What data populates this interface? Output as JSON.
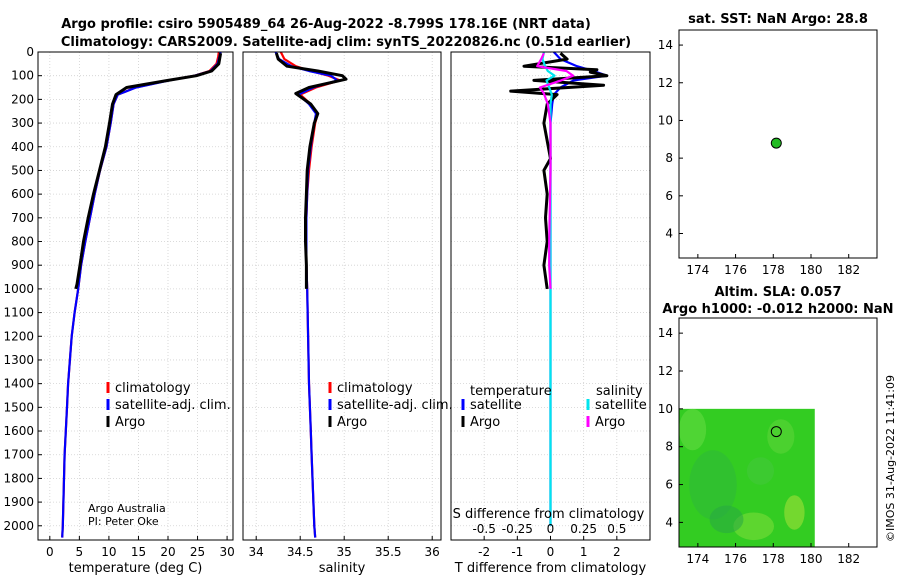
{
  "titles": {
    "line1": "Argo profile: csiro 5905489_64 26-Aug-2022 -8.799S 178.16E (NRT data)",
    "line2": "Climatology: CARS2009. Satellite-adj clim: synTS_20220826.nc (0.51d earlier)"
  },
  "colors": {
    "climatology": "#ff0000",
    "satellite": "#0000ff",
    "argo": "#000000",
    "satellite_s": "#00e5ee",
    "argo_s": "#ff00ff",
    "map_green": "#33cc22",
    "marker": "#22bb22"
  },
  "credits": {
    "line1": "Argo Australia",
    "line2": "PI: Peter Oke"
  },
  "timestamp": "©IMOS 31-Aug-2022 11:41:09",
  "chart_data": [
    {
      "id": "temperature",
      "type": "line",
      "xlabel": "temperature (deg C)",
      "ylabel": "",
      "xlim": [
        -2,
        31
      ],
      "ylim": [
        2060,
        0
      ],
      "xticks": [
        0,
        5,
        10,
        15,
        20,
        25,
        30
      ],
      "yticks": [
        0,
        100,
        200,
        300,
        400,
        500,
        600,
        700,
        800,
        900,
        1000,
        1100,
        1200,
        1300,
        1400,
        1500,
        1600,
        1700,
        1800,
        1900,
        2000
      ],
      "legend": [
        "climatology",
        "satellite-adj. clim.",
        "Argo"
      ],
      "series": [
        {
          "name": "climatology",
          "color": "#ff0000",
          "x": [
            28.6,
            28.5,
            28.2,
            27.0,
            24.5,
            20.0,
            14.5,
            11.5,
            10.8,
            10.3,
            9.6,
            8.5,
            7.6,
            6.8,
            6.0,
            5.3,
            4.8,
            4.2,
            3.7,
            3.4,
            3.1,
            2.9,
            2.7,
            2.5,
            2.4,
            2.3,
            2.2,
            2.1
          ],
          "y": [
            0,
            20,
            50,
            80,
            100,
            120,
            150,
            180,
            220,
            300,
            400,
            500,
            600,
            700,
            800,
            900,
            1000,
            1100,
            1200,
            1300,
            1400,
            1500,
            1600,
            1700,
            1800,
            1900,
            2000,
            2050
          ]
        },
        {
          "name": "satellite-adj. clim.",
          "color": "#0000ff",
          "x": [
            28.9,
            28.7,
            28.4,
            27.2,
            24.5,
            20.2,
            14.6,
            11.5,
            10.8,
            10.3,
            9.6,
            8.5,
            7.6,
            6.8,
            6.0,
            5.3,
            4.8,
            4.2,
            3.7,
            3.4,
            3.1,
            2.9,
            2.7,
            2.5,
            2.4,
            2.3,
            2.2,
            2.1
          ],
          "y": [
            0,
            20,
            50,
            80,
            100,
            120,
            150,
            180,
            220,
            300,
            400,
            500,
            600,
            700,
            800,
            900,
            1000,
            1100,
            1200,
            1300,
            1400,
            1500,
            1600,
            1700,
            1800,
            1900,
            2000,
            2050
          ]
        },
        {
          "name": "Argo",
          "color": "#000000",
          "x": [
            28.9,
            28.8,
            28.6,
            27.4,
            24.8,
            20.0,
            13.0,
            11.2,
            10.6,
            10.1,
            9.4,
            8.4,
            7.4,
            6.5,
            5.7,
            5.1,
            4.6,
            4.4
          ],
          "y": [
            5,
            20,
            50,
            80,
            100,
            120,
            150,
            180,
            220,
            300,
            400,
            500,
            600,
            700,
            800,
            900,
            980,
            1000
          ]
        }
      ],
      "annotations": [
        "Argo Australia",
        "PI: Peter Oke"
      ]
    },
    {
      "id": "salinity",
      "type": "line",
      "xlabel": "salinity",
      "xlim": [
        33.85,
        36.1
      ],
      "ylim": [
        2060,
        0
      ],
      "xticks": [
        34,
        34.5,
        35,
        35.5,
        36
      ],
      "legend": [
        "climatology",
        "satellite-adj. clim.",
        "Argo"
      ],
      "series": [
        {
          "name": "climatology",
          "color": "#ff0000",
          "x": [
            34.28,
            34.32,
            34.45,
            34.62,
            34.82,
            34.95,
            34.68,
            34.5,
            34.62,
            34.7,
            34.67,
            34.63,
            34.6,
            34.58,
            34.57,
            34.57,
            34.57,
            34.58,
            34.59,
            34.6,
            34.61,
            34.62,
            34.63,
            34.64,
            34.65,
            34.66,
            34.67
          ],
          "y": [
            0,
            30,
            60,
            80,
            100,
            120,
            150,
            180,
            220,
            260,
            300,
            400,
            500,
            600,
            700,
            800,
            900,
            1000,
            1200,
            1400,
            1500,
            1600,
            1700,
            1800,
            1900,
            2000,
            2050
          ]
        },
        {
          "name": "satellite-adj. clim.",
          "color": "#0000ff",
          "x": [
            34.22,
            34.26,
            34.4,
            34.6,
            34.85,
            34.92,
            34.65,
            34.48,
            34.6,
            34.68,
            34.66,
            34.62,
            34.59,
            34.58,
            34.57,
            34.57,
            34.57,
            34.58,
            34.59,
            34.6,
            34.61,
            34.62,
            34.63,
            34.64,
            34.65,
            34.66,
            34.67
          ],
          "y": [
            0,
            30,
            60,
            80,
            100,
            120,
            150,
            180,
            220,
            260,
            300,
            400,
            500,
            600,
            700,
            800,
            900,
            1000,
            1200,
            1400,
            1500,
            1600,
            1700,
            1800,
            1900,
            2000,
            2050
          ]
        },
        {
          "name": "Argo",
          "color": "#000000",
          "x": [
            34.23,
            34.25,
            34.35,
            34.7,
            34.98,
            35.02,
            34.6,
            34.45,
            34.62,
            34.7,
            34.66,
            34.61,
            34.58,
            34.57,
            34.56,
            34.56,
            34.57,
            34.57
          ],
          "y": [
            5,
            30,
            60,
            80,
            100,
            115,
            150,
            175,
            220,
            260,
            300,
            400,
            500,
            600,
            700,
            800,
            900,
            1000
          ]
        }
      ]
    },
    {
      "id": "difference",
      "type": "line",
      "xlabel": "T difference from climatology",
      "xlabel_top": "S difference from climatology",
      "xlim": [
        -3,
        3
      ],
      "xlim_s": [
        -0.75,
        0.75
      ],
      "ylim": [
        2060,
        0
      ],
      "xticks": [
        -2,
        -1,
        0,
        1,
        2
      ],
      "xticks_s": [
        -0.5,
        -0.25,
        0,
        0.25,
        0.5
      ],
      "xtick_labels_s": [
        "-0.5",
        "-0.25",
        "0",
        "0.25",
        "0.5"
      ],
      "legend_temperature_title": "temperature",
      "legend_salinity_title": "salinity",
      "legend_temperature": [
        "satellite",
        "Argo"
      ],
      "legend_salinity": [
        "satellite",
        "Argo"
      ],
      "series": [
        {
          "name": "T satellite",
          "color": "#0000ff",
          "axis": "T",
          "x": [
            0.1,
            0.3,
            0.8,
            1.3,
            1.7,
            0.7,
            0.3,
            0.1,
            0.05,
            0.0,
            0.0,
            0.0,
            0.0,
            0.0,
            0.0
          ],
          "y": [
            0,
            30,
            60,
            80,
            100,
            120,
            150,
            180,
            220,
            300,
            500,
            800,
            1000,
            1500,
            2000
          ]
        },
        {
          "name": "T Argo",
          "color": "#000000",
          "axis": "T",
          "x": [
            0.3,
            0.5,
            -0.8,
            1.4,
            1.2,
            1.7,
            -0.5,
            1.6,
            -1.2,
            0.2,
            -0.1,
            -0.2,
            0.0,
            -0.2,
            -0.1,
            -0.15,
            -0.1,
            -0.2,
            -0.1
          ],
          "y": [
            5,
            30,
            60,
            75,
            85,
            100,
            120,
            140,
            165,
            180,
            220,
            300,
            450,
            500,
            600,
            700,
            800,
            900,
            1000
          ]
        },
        {
          "name": "S satellite",
          "color": "#00e5ee",
          "axis": "S",
          "x": [
            -0.05,
            -0.06,
            -0.04,
            -0.02,
            0.03,
            -0.03,
            -0.01,
            0.01,
            0.0,
            0.0,
            0.0,
            0.0,
            0.0,
            0.0
          ],
          "y": [
            0,
            30,
            60,
            80,
            100,
            120,
            150,
            180,
            220,
            300,
            500,
            1000,
            1500,
            2000
          ]
        },
        {
          "name": "S Argo",
          "color": "#ff00ff",
          "axis": "S",
          "x": [
            -0.05,
            -0.07,
            -0.1,
            0.12,
            0.17,
            0.08,
            -0.08,
            -0.05,
            -0.02,
            0.0,
            0.0,
            -0.01,
            -0.01,
            0.0
          ],
          "y": [
            5,
            30,
            60,
            80,
            100,
            120,
            150,
            175,
            220,
            300,
            500,
            800,
            900,
            1000
          ]
        }
      ]
    },
    {
      "id": "sst_map",
      "type": "scatter",
      "title": "sat. SST: NaN Argo: 28.8",
      "xlim": [
        173,
        183.5
      ],
      "ylim": [
        2.7,
        14.8
      ],
      "xticks": [
        174,
        176,
        178,
        180,
        182
      ],
      "yticks": [
        4,
        6,
        8,
        10,
        12,
        14
      ],
      "points": [
        {
          "x": 178.16,
          "y": 8.799
        }
      ]
    },
    {
      "id": "sla_map",
      "type": "heatmap",
      "title_line1": "Altim. SLA: 0.057",
      "title_line2": "Argo h1000: -0.012 h2000: NaN",
      "xlim": [
        173,
        183.5
      ],
      "ylim": [
        2.7,
        14.8
      ],
      "xticks": [
        174,
        176,
        178,
        180,
        182
      ],
      "yticks": [
        4,
        6,
        8,
        10,
        12,
        14
      ],
      "field_extent": {
        "x": [
          173,
          180.2
        ],
        "y": [
          2.7,
          10.0
        ]
      },
      "points": [
        {
          "x": 178.16,
          "y": 8.799
        }
      ]
    }
  ]
}
